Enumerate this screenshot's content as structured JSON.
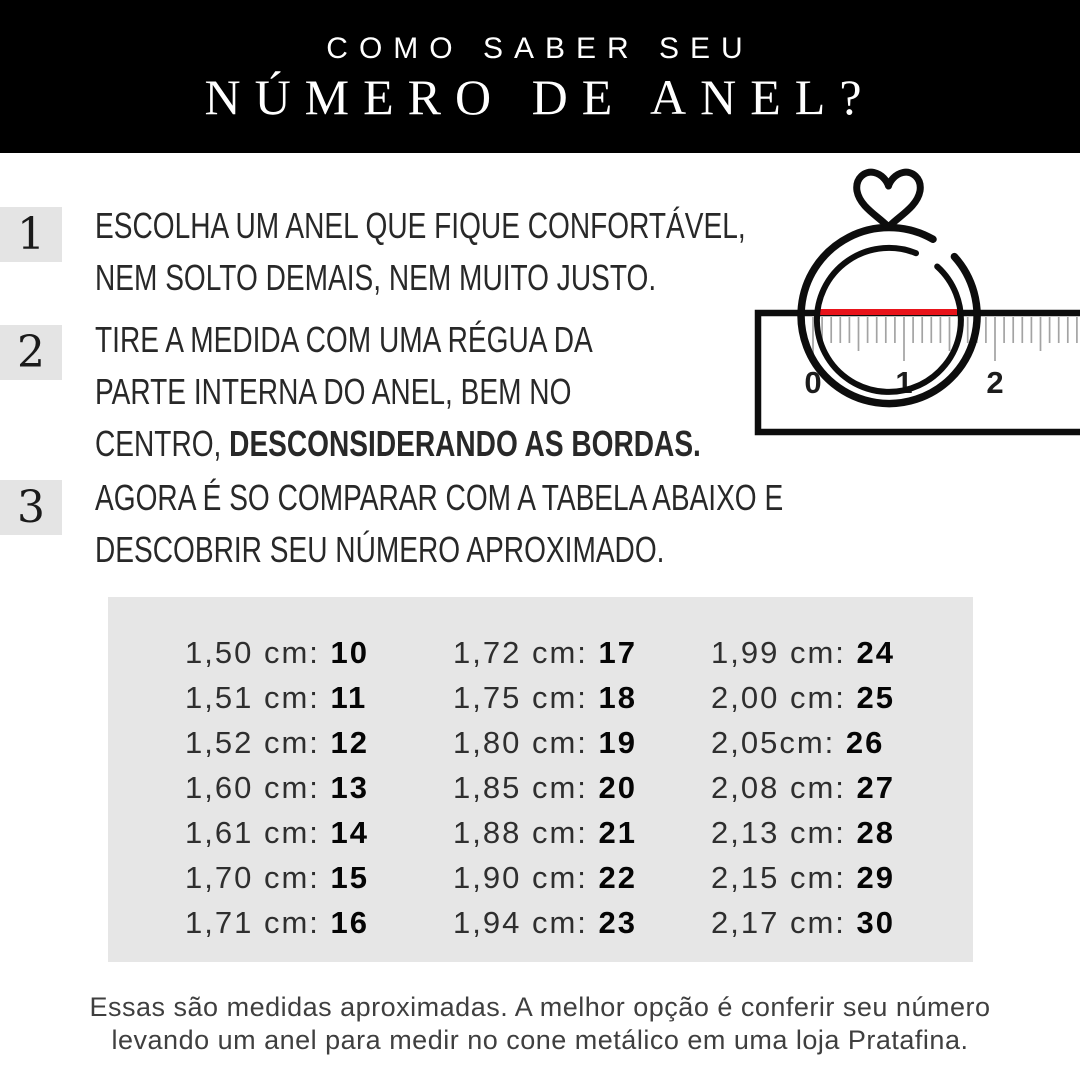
{
  "header": {
    "line1": "COMO SABER SEU",
    "line2": "NÚMERO DE ANEL?"
  },
  "steps": [
    {
      "number": "1",
      "lines": [
        [
          {
            "t": "ESCOLHA UM ANEL QUE FIQUE CONFORTÁVEL,",
            "b": false
          }
        ],
        [
          {
            "t": "NEM SOLTO DEMAIS, NEM MUITO JUSTO.",
            "b": false
          }
        ]
      ]
    },
    {
      "number": "2",
      "lines": [
        [
          {
            "t": "TIRE A MEDIDA COM UMA RÉGUA DA",
            "b": false
          }
        ],
        [
          {
            "t": "PARTE INTERNA DO ANEL, BEM NO",
            "b": false
          }
        ],
        [
          {
            "t": "CENTRO, ",
            "b": false
          },
          {
            "t": "DESCONSIDERANDO AS BORDAS.",
            "b": true
          }
        ]
      ]
    },
    {
      "number": "3",
      "lines": [
        [
          {
            "t": "AGORA É SO COMPARAR COM A TABELA ABAIXO E",
            "b": false
          }
        ],
        [
          {
            "t": "DESCOBRIR SEU NÚMERO APROXIMADO.",
            "b": false
          }
        ]
      ]
    }
  ],
  "illustration": {
    "icon": "heart-ring-on-ruler",
    "ruler_labels": [
      "0",
      "1",
      "2"
    ],
    "measure_line_color": "#e8131a"
  },
  "table": {
    "columns": [
      [
        {
          "cm": "1,50 cm:",
          "size": "10"
        },
        {
          "cm": "1,51 cm:",
          "size": "11"
        },
        {
          "cm": "1,52 cm:",
          "size": "12"
        },
        {
          "cm": "1,60 cm:",
          "size": "13"
        },
        {
          "cm": "1,61 cm:",
          "size": "14"
        },
        {
          "cm": "1,70 cm:",
          "size": "15"
        },
        {
          "cm": "1,71 cm:",
          "size": "16"
        }
      ],
      [
        {
          "cm": "1,72 cm:",
          "size": "17"
        },
        {
          "cm": "1,75 cm:",
          "size": "18"
        },
        {
          "cm": "1,80 cm:",
          "size": "19"
        },
        {
          "cm": "1,85 cm:",
          "size": "20"
        },
        {
          "cm": "1,88 cm:",
          "size": "21"
        },
        {
          "cm": "1,90 cm:",
          "size": "22"
        },
        {
          "cm": "1,94 cm:",
          "size": "23"
        }
      ],
      [
        {
          "cm": "1,99 cm:",
          "size": "24"
        },
        {
          "cm": "2,00 cm:",
          "size": "25"
        },
        {
          "cm": "2,05cm:",
          "size": "26"
        },
        {
          "cm": "2,08 cm:",
          "size": "27"
        },
        {
          "cm": "2,13 cm:",
          "size": "28"
        },
        {
          "cm": "2,15 cm:",
          "size": "29"
        },
        {
          "cm": "2,17 cm:",
          "size": "30"
        }
      ]
    ]
  },
  "footer": {
    "line1": "Essas são medidas aproximadas. A melhor opção é conferir seu número",
    "line2": "levando um anel para medir no cone metálico em uma loja Pratafina."
  },
  "colors": {
    "header_bg": "#000000",
    "panel_gray": "#e6e6e6",
    "badge_gray": "#e4e4e4",
    "accent_red": "#e8131a",
    "text_dark": "#282828"
  }
}
